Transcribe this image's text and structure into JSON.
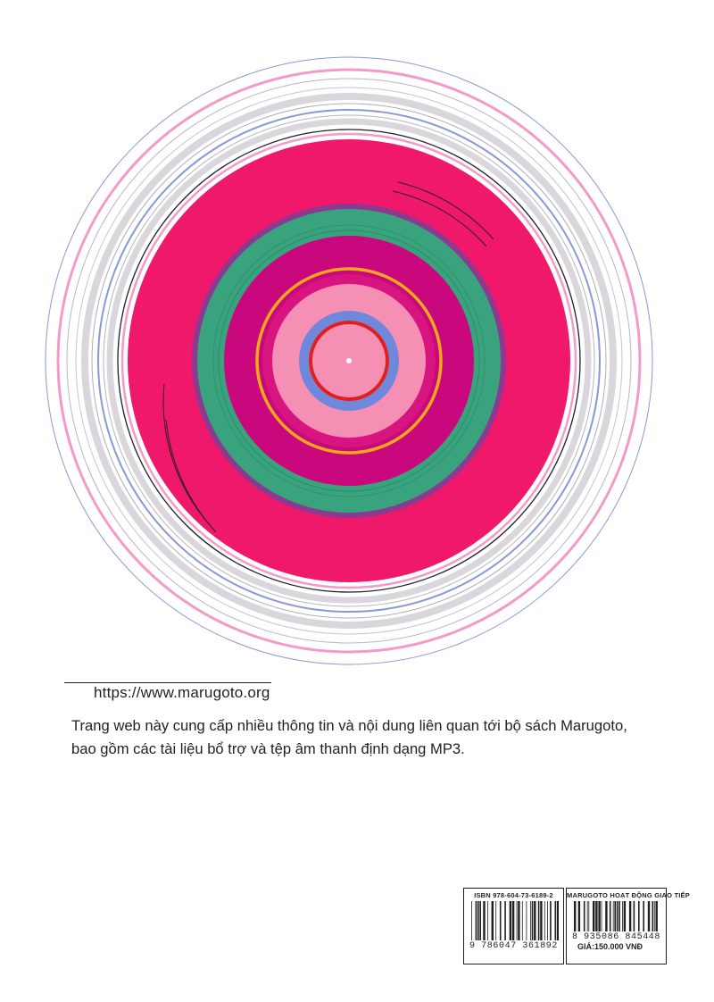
{
  "colors": {
    "disc_pink": "#f0186a",
    "deep_magenta": "#c8087c",
    "mint": "#39a37e",
    "light_pink": "#f58fb4",
    "orange": "#f2a81d",
    "periwinkle": "#6f88dc",
    "red": "#e0201d",
    "outline_pink": "#f49ac8",
    "outline_gray": "#d9d7dc",
    "outline_blue": "#8799d8"
  },
  "website": {
    "url": "https://www.marugoto.org"
  },
  "description": {
    "line1": "Trang web này cung cấp nhiều thông tin và nội dung liên quan tới bộ sách Marugoto,",
    "line2": "bao gồm các tài liệu bổ trợ và tệp âm thanh định dạng MP3."
  },
  "isbn_barcode": {
    "top_label": "ISBN 978-604-73-6189-2",
    "number": "9 786047 361892"
  },
  "price_barcode": {
    "top_label": "MARUGOTO HOẠT ĐỘNG GIAO TIẾP",
    "number": "8 935086 845448",
    "price": "GIÁ:150.000 VNĐ"
  }
}
